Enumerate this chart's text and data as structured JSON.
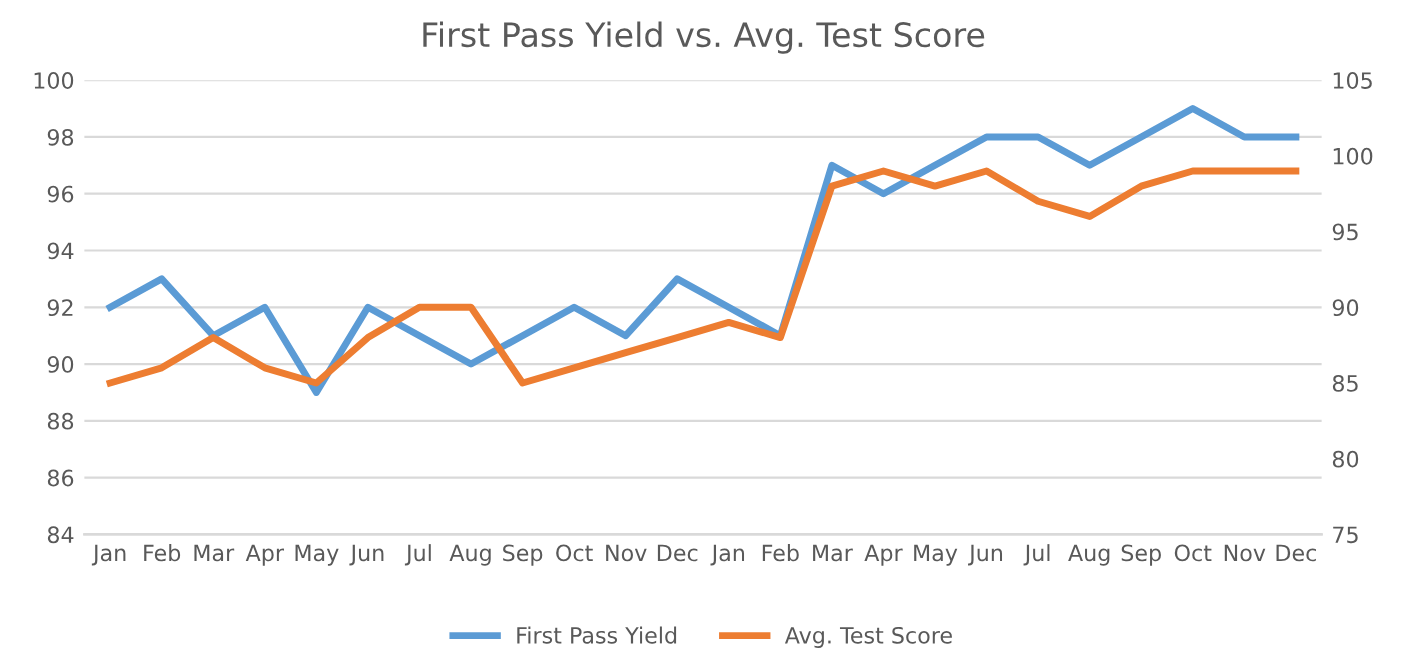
{
  "chart_data": {
    "type": "line",
    "title": "First Pass Yield vs. Avg. Test Score",
    "categories": [
      "Jan",
      "Feb",
      "Mar",
      "Apr",
      "May",
      "Jun",
      "Jul",
      "Aug",
      "Sep",
      "Oct",
      "Nov",
      "Dec",
      "Jan",
      "Feb",
      "Mar",
      "Apr",
      "May",
      "Jun",
      "Jul",
      "Aug",
      "Sep",
      "Oct",
      "Nov",
      "Dec"
    ],
    "series": [
      {
        "name": "First Pass Yield",
        "color": "#5b9bd5",
        "values": [
          92,
          93,
          91,
          92,
          89,
          92,
          91,
          90,
          91,
          92,
          91,
          93,
          92,
          91,
          97,
          96,
          97,
          98,
          98,
          97,
          98,
          99,
          98,
          98
        ]
      },
      {
        "name": "Avg. Test Score",
        "color": "#ed7d31",
        "axis": "y2",
        "values": [
          85,
          86,
          88,
          86,
          85,
          88,
          90,
          90,
          85,
          86,
          87,
          88,
          89,
          88,
          98,
          99,
          98,
          99,
          97,
          96,
          98,
          99,
          99,
          99
        ]
      }
    ],
    "ylim": [
      84,
      100
    ],
    "yticks": [
      84,
      86,
      88,
      90,
      92,
      94,
      96,
      98,
      100
    ],
    "y2lim": [
      75,
      105
    ],
    "y2ticks": [
      75,
      80,
      85,
      90,
      95,
      100,
      105
    ],
    "grid": "y",
    "legend": "bottom",
    "marker": "none",
    "line_style": "solid"
  }
}
